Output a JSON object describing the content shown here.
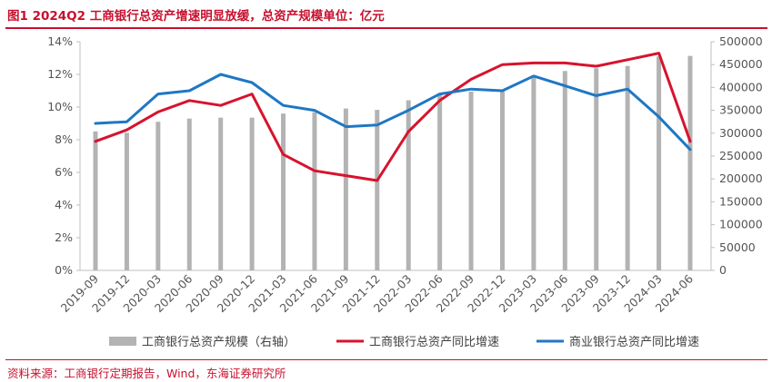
{
  "title": "图1  2024Q2 工商银行总资产增速明显放缓，总资产规模单位：亿元",
  "source": "资料来源：工商银行定期报告，Wind，东海证券研究所",
  "colors": {
    "title": "#c8102e",
    "bars": "#b3b3b3",
    "icbc_line": "#d7132d",
    "commercial_line": "#1f77c4"
  },
  "chart_data": {
    "type": "bar+line",
    "categories": [
      "2019-09",
      "2019-12",
      "2020-03",
      "2020-06",
      "2020-09",
      "2020-12",
      "2021-03",
      "2021-06",
      "2021-09",
      "2021-12",
      "2022-03",
      "2022-06",
      "2022-09",
      "2022-12",
      "2023-03",
      "2023-06",
      "2023-09",
      "2023-12",
      "2024-03",
      "2024-06"
    ],
    "y_left": {
      "min": 0,
      "max": 14,
      "step": 2,
      "unit": "%",
      "ticks": [
        "0%",
        "2%",
        "4%",
        "6%",
        "8%",
        "10%",
        "12%",
        "14%"
      ]
    },
    "y_right": {
      "min": 0,
      "max": 500000,
      "step": 50000,
      "ticks": [
        "0",
        "50000",
        "100000",
        "150000",
        "200000",
        "250000",
        "300000",
        "350000",
        "400000",
        "450000",
        "500000"
      ]
    },
    "series": [
      {
        "name": "工商银行总资产规模（右轴）",
        "type": "bar",
        "axis": "right",
        "values": [
          304000,
          301000,
          325000,
          332000,
          334000,
          334000,
          343000,
          346000,
          354000,
          351000,
          372000,
          385000,
          391000,
          396000,
          425000,
          436000,
          442000,
          447000,
          468000,
          469000
        ]
      },
      {
        "name": "工商银行总资产同比增速",
        "type": "line",
        "axis": "left",
        "values": [
          7.9,
          8.6,
          9.7,
          10.4,
          10.1,
          10.8,
          7.1,
          6.1,
          5.8,
          5.5,
          8.5,
          10.4,
          11.7,
          12.6,
          12.7,
          12.7,
          12.5,
          12.9,
          13.3,
          7.9
        ]
      },
      {
        "name": "商业银行总资产同比增速",
        "type": "line",
        "axis": "left",
        "values": [
          9.0,
          9.1,
          10.8,
          11.0,
          12.0,
          11.5,
          10.1,
          9.8,
          8.8,
          8.9,
          9.8,
          10.8,
          11.1,
          11.0,
          11.9,
          11.3,
          10.7,
          11.1,
          9.4,
          7.4
        ]
      }
    ],
    "legend_position": "bottom",
    "grid": false
  }
}
